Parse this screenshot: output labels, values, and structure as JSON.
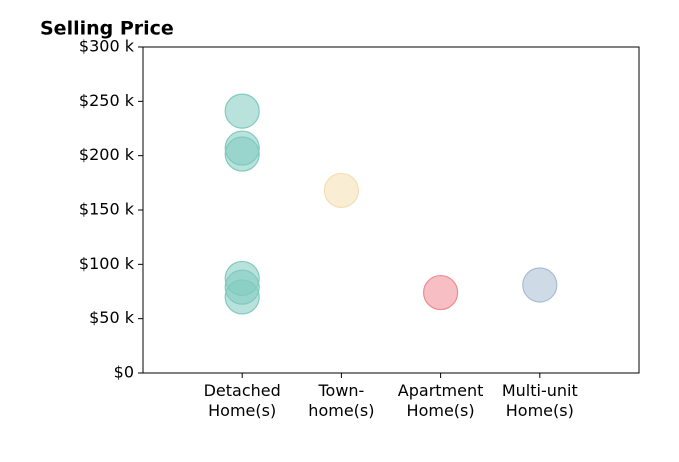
{
  "chart_data": {
    "type": "strip",
    "title": "Selling Price",
    "categories": [
      "Detached\nHome(s)",
      "Town-\nhome(s)",
      "Apartment\nHome(s)",
      "Multi-unit\nHome(s)"
    ],
    "colors": [
      "#7fcbbf",
      "#f4dfb0",
      "#f08a92",
      "#a6bdd3"
    ],
    "groups": [
      [
        241,
        207,
        201.5,
        87,
        79,
        70
      ],
      [
        168
      ],
      [
        74
      ],
      [
        81
      ]
    ],
    "ylim": [
      0,
      300000
    ],
    "yticks": [
      {
        "value": 0,
        "label": "$0"
      },
      {
        "value": 50000,
        "label": "$50 k"
      },
      {
        "value": 100000,
        "label": "$100 k"
      },
      {
        "value": 150000,
        "label": "$150 k"
      },
      {
        "value": 200000,
        "label": "$200 k"
      },
      {
        "value": 250000,
        "label": "$250 k"
      },
      {
        "value": 300000,
        "label": "$300 k"
      }
    ],
    "unit_scale": 1000
  }
}
